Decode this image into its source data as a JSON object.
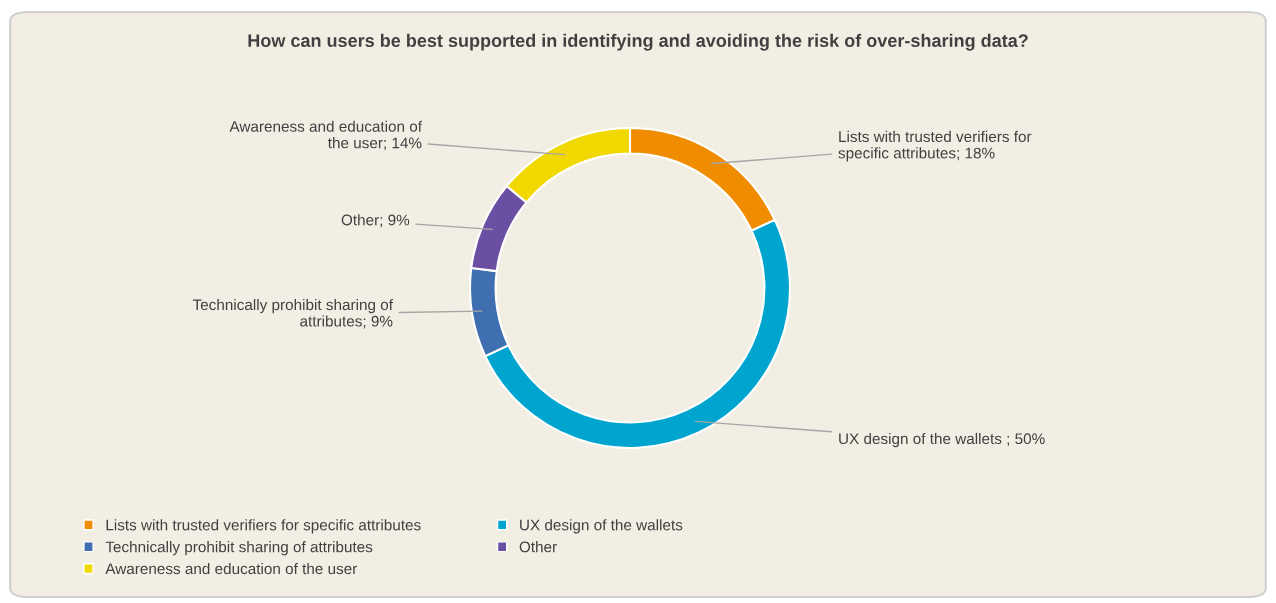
{
  "chart_data": {
    "type": "donut",
    "title": "How can users be best supported in identifying and avoiding the risk of over-sharing data?",
    "categories": [
      "Lists with trusted verifiers for specific attributes",
      "UX design of the wallets",
      "Technically prohibit sharing of attributes",
      "Other",
      "Awareness and education of the user"
    ],
    "values": [
      18,
      50,
      9,
      9,
      14
    ],
    "colors": [
      "#f08c00",
      "#00a5cf",
      "#3f6fb0",
      "#6a4fa3",
      "#f0d800"
    ],
    "value_labels": [
      "Lists with trusted verifiers for\nspecific attributes; 18%",
      "UX design of the wallets ; 50%",
      "Technically prohibit sharing of\nattributes; 9%",
      "Other; 9%",
      "Awareness and education of\nthe user; 14%"
    ],
    "legend": "bottom"
  }
}
